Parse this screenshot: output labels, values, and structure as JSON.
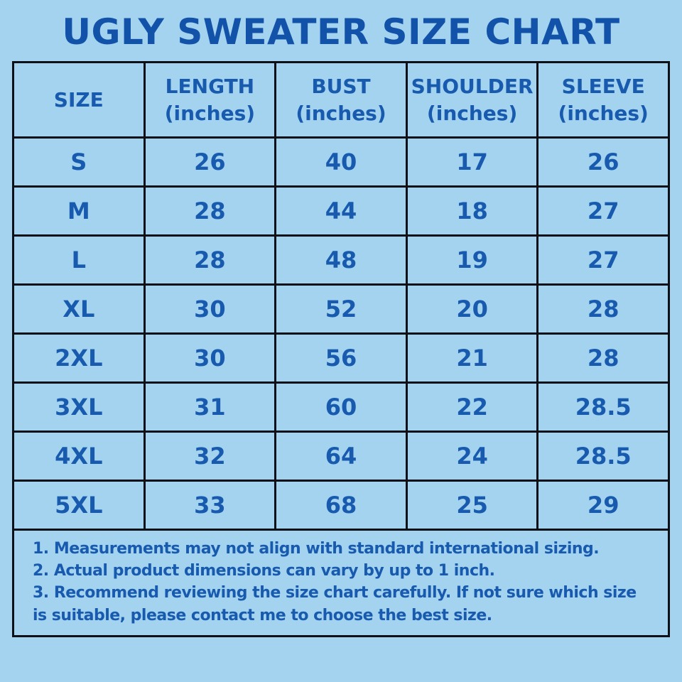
{
  "colors": {
    "background": "#a4d3f0",
    "title_text": "#1253a9",
    "table_text": "#175aae",
    "border": "#0d1017"
  },
  "chart_data": {
    "type": "table",
    "title": "UGLY SWEATER SIZE CHART",
    "columns": [
      {
        "label": "SIZE",
        "sub": ""
      },
      {
        "label": "LENGTH",
        "sub": "(inches)"
      },
      {
        "label": "BUST",
        "sub": "(inches)"
      },
      {
        "label": "SHOULDER",
        "sub": "(inches)"
      },
      {
        "label": "SLEEVE",
        "sub": "(inches)"
      }
    ],
    "rows": [
      [
        "S",
        "26",
        "40",
        "17",
        "26"
      ],
      [
        "M",
        "28",
        "44",
        "18",
        "27"
      ],
      [
        "L",
        "28",
        "48",
        "19",
        "27"
      ],
      [
        "XL",
        "30",
        "52",
        "20",
        "28"
      ],
      [
        "2XL",
        "30",
        "56",
        "21",
        "28"
      ],
      [
        "3XL",
        "31",
        "60",
        "22",
        "28.5"
      ],
      [
        "4XL",
        "32",
        "64",
        "24",
        "28.5"
      ],
      [
        "5XL",
        "33",
        "68",
        "25",
        "29"
      ]
    ],
    "notes": [
      "1. Measurements may not align with standard international sizing.",
      "2. Actual product dimensions can vary by up to 1 inch.",
      "3. Recommend reviewing the size chart carefully. If not sure which size is suitable, please contact me to choose the best size."
    ]
  }
}
